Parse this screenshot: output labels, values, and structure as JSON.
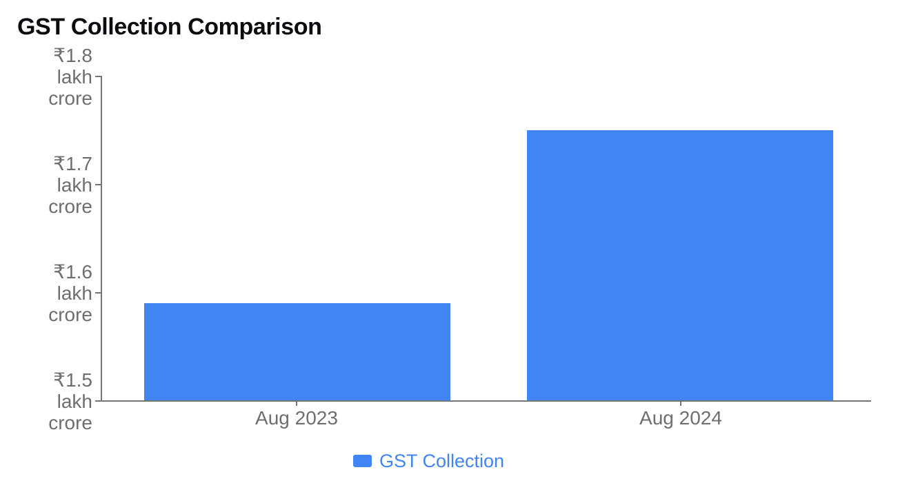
{
  "title": "GST Collection Comparison",
  "chart_data": {
    "type": "bar",
    "title": "GST Collection Comparison",
    "categories": [
      "Aug 2023",
      "Aug 2024"
    ],
    "series": [
      {
        "name": "GST Collection",
        "values": [
          1.59,
          1.75
        ]
      }
    ],
    "unit": "lakh crore rupees",
    "xlabel": "",
    "ylabel": "",
    "ylim": [
      1.5,
      1.8
    ],
    "y_tick_values": [
      1.5,
      1.6,
      1.7,
      1.8
    ],
    "y_tick_labels": [
      "₹1.5 lakh crore",
      "₹1.6 lakh crore",
      "₹1.7 lakh crore",
      "₹1.8 lakh crore"
    ],
    "grid": false,
    "legend_position": "bottom",
    "bar_color": "#4184F3"
  },
  "y_axis": {
    "ticks": [
      {
        "line1": "₹1.5",
        "line2": "lakh",
        "line3": "crore"
      },
      {
        "line1": "₹1.6",
        "line2": "lakh",
        "line3": "crore"
      },
      {
        "line1": "₹1.7",
        "line2": "lakh",
        "line3": "crore"
      },
      {
        "line1": "₹1.8",
        "line2": "lakh",
        "line3": "crore"
      }
    ]
  },
  "x_axis": {
    "labels": [
      "Aug 2023",
      "Aug 2024"
    ]
  },
  "legend": {
    "label": "GST Collection",
    "swatch_color": "#4184F3"
  },
  "colors": {
    "bar": "#4184F3",
    "axis": "#757575",
    "tick_text": "#6E6E6E",
    "title_text": "#0C0C10",
    "background": "#FFFFFF"
  }
}
